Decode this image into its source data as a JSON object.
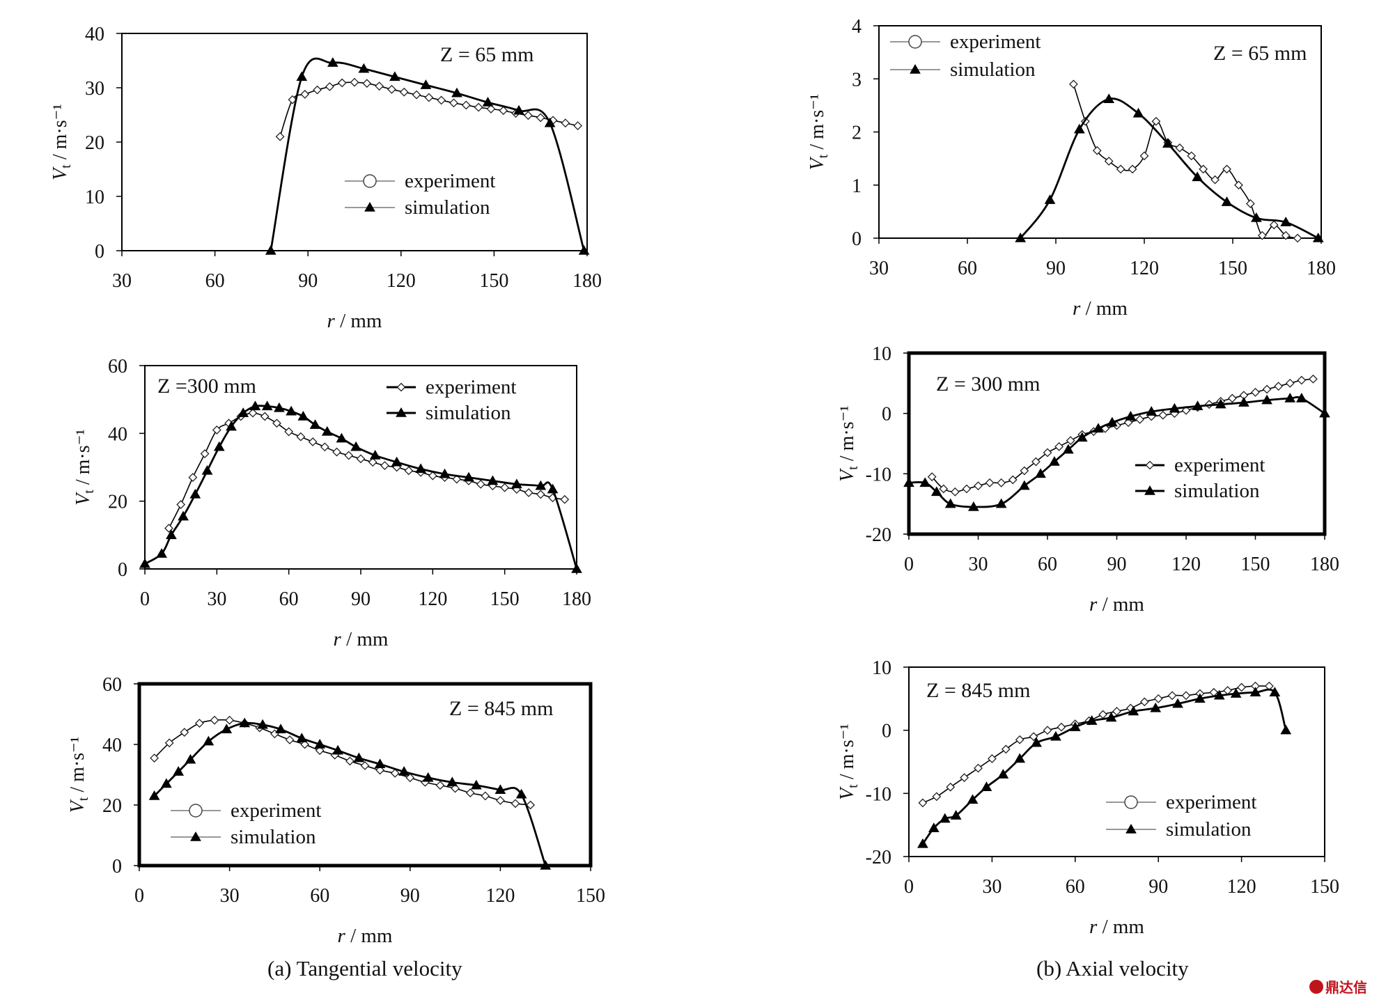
{
  "figure": {
    "caption_a": "(a) Tangential velocity",
    "caption_b": "(b) Axial velocity",
    "watermark": "鼎达信"
  },
  "chart_data": [
    {
      "id": "a1",
      "type": "line",
      "title": "Z = 65 mm",
      "xlabel": "r / mm",
      "ylabel": "Vt / m·s⁻¹",
      "xlim": [
        30,
        180
      ],
      "ylim": [
        0,
        40
      ],
      "xticks": [
        30,
        60,
        90,
        120,
        150,
        180
      ],
      "yticks": [
        0,
        10,
        20,
        30,
        40
      ],
      "legend": "lower-right",
      "legend_style": "open",
      "series": [
        {
          "name": "experiment",
          "marker": "diamond",
          "x": [
            81,
            85,
            89,
            93,
            97,
            101,
            105,
            109,
            113,
            117,
            121,
            125,
            129,
            133,
            137,
            141,
            145,
            149,
            153,
            157,
            161,
            165,
            169,
            173,
            177
          ],
          "y": [
            21,
            27.8,
            28.8,
            29.6,
            30.2,
            30.9,
            31,
            30.8,
            30.3,
            29.7,
            29.2,
            28.7,
            28.2,
            27.7,
            27.2,
            26.8,
            26.4,
            26.1,
            25.8,
            25.3,
            24.9,
            24.5,
            24,
            23.5,
            23
          ]
        },
        {
          "name": "simulation",
          "marker": "triangle",
          "x": [
            78,
            88,
            98,
            108,
            118,
            128,
            138,
            148,
            158,
            168,
            179
          ],
          "y": [
            0,
            32,
            34.6,
            33.5,
            32,
            30.5,
            29,
            27.3,
            25.8,
            23.5,
            0
          ]
        }
      ]
    },
    {
      "id": "a2",
      "type": "line",
      "title": "Z =300 mm",
      "xlabel": "r / mm",
      "ylabel": "Vt / m·s⁻¹",
      "xlim": [
        0,
        180
      ],
      "ylim": [
        0,
        60
      ],
      "xticks": [
        0,
        30,
        60,
        90,
        120,
        150,
        180
      ],
      "yticks": [
        0,
        20,
        40,
        60
      ],
      "legend": "top-right",
      "legend_style": "bold",
      "series": [
        {
          "name": "experiment",
          "marker": "diamond",
          "x": [
            10,
            15,
            20,
            25,
            30,
            35,
            40,
            45,
            50,
            55,
            60,
            65,
            70,
            75,
            80,
            85,
            90,
            95,
            100,
            105,
            110,
            115,
            120,
            125,
            130,
            135,
            140,
            145,
            150,
            155,
            160,
            165,
            170,
            175
          ],
          "y": [
            12,
            19,
            27,
            34,
            41,
            43,
            45,
            46,
            45,
            43,
            40.5,
            39,
            37.5,
            36,
            34.5,
            33.5,
            32.5,
            31.5,
            30.5,
            30,
            29,
            28.5,
            27.5,
            27,
            26.5,
            26,
            25,
            24.5,
            24,
            23.5,
            22.5,
            22,
            21,
            20.5
          ]
        },
        {
          "name": "simulation",
          "marker": "triangle",
          "x": [
            0,
            7,
            11,
            16,
            21,
            26,
            31,
            36,
            41,
            46,
            51,
            56,
            61,
            66,
            71,
            76,
            82,
            88,
            96,
            105,
            115,
            125,
            135,
            145,
            155,
            165,
            170,
            180
          ],
          "y": [
            1.5,
            4.5,
            10,
            15.5,
            22,
            29,
            36,
            42,
            46,
            48,
            48,
            47.5,
            46.5,
            45,
            42.5,
            40.5,
            38.5,
            36,
            33.5,
            31.5,
            29.5,
            28,
            27,
            26,
            25,
            24.5,
            23.5,
            0
          ]
        }
      ]
    },
    {
      "id": "a3",
      "type": "line",
      "title": "Z = 845 mm",
      "xlabel": "r / mm",
      "ylabel": "Vt / m·s⁻¹",
      "xlim": [
        0,
        150
      ],
      "ylim": [
        0,
        60
      ],
      "xticks": [
        0,
        30,
        60,
        90,
        120,
        150
      ],
      "yticks": [
        0,
        20,
        40,
        60
      ],
      "legend": "bottom-left",
      "legend_style": "open",
      "series": [
        {
          "name": "experiment",
          "marker": "diamond",
          "x": [
            5,
            10,
            15,
            20,
            25,
            30,
            35,
            40,
            45,
            50,
            55,
            60,
            65,
            70,
            75,
            80,
            85,
            90,
            95,
            100,
            105,
            110,
            115,
            120,
            125,
            130
          ],
          "y": [
            35.5,
            40.5,
            44,
            47,
            48,
            48,
            47,
            45.5,
            43.5,
            41.5,
            40,
            38,
            36.5,
            34.5,
            33,
            31.5,
            30.5,
            29,
            27.5,
            26.5,
            25.5,
            24,
            23,
            21.5,
            20.5,
            20
          ]
        },
        {
          "name": "simulation",
          "marker": "triangle",
          "x": [
            5,
            9,
            13,
            17,
            23,
            29,
            35,
            41,
            47,
            54,
            60,
            66,
            73,
            80,
            88,
            96,
            104,
            112,
            120,
            127,
            135
          ],
          "y": [
            23,
            27,
            31,
            35,
            41,
            45,
            47,
            46.5,
            45,
            42,
            40,
            38,
            35.5,
            33.5,
            31,
            29,
            27.5,
            26.5,
            25,
            23.5,
            0
          ]
        }
      ]
    },
    {
      "id": "b1",
      "type": "line",
      "title": "Z = 65 mm",
      "xlabel": "r / mm",
      "ylabel": "Vt / m·s⁻¹",
      "xlim": [
        30,
        180
      ],
      "ylim": [
        0,
        4
      ],
      "xticks": [
        30,
        60,
        90,
        120,
        150,
        180
      ],
      "yticks": [
        0,
        1,
        2,
        3,
        4
      ],
      "legend": "top-left",
      "legend_style": "open",
      "series": [
        {
          "name": "experiment",
          "marker": "diamond",
          "x": [
            96,
            100,
            104,
            108,
            112,
            116,
            120,
            124,
            128,
            132,
            136,
            140,
            144,
            148,
            152,
            156,
            160,
            164,
            168,
            172
          ],
          "y": [
            2.9,
            2.2,
            1.65,
            1.45,
            1.3,
            1.3,
            1.55,
            2.2,
            1.8,
            1.7,
            1.55,
            1.3,
            1.1,
            1.3,
            1.0,
            0.65,
            0.05,
            0.25,
            0.05,
            0.0
          ]
        },
        {
          "name": "simulation",
          "marker": "triangle",
          "x": [
            78,
            88,
            98,
            108,
            118,
            128,
            138,
            148,
            158,
            168,
            179
          ],
          "y": [
            0,
            0.72,
            2.05,
            2.62,
            2.35,
            1.78,
            1.15,
            0.68,
            0.38,
            0.3,
            0
          ]
        }
      ]
    },
    {
      "id": "b2",
      "type": "line",
      "title": "Z = 300 mm",
      "xlabel": "r / mm",
      "ylabel": "Vt / m·s⁻¹",
      "xlim": [
        0,
        180
      ],
      "ylim": [
        -20,
        10
      ],
      "xticks": [
        0,
        30,
        60,
        90,
        120,
        150,
        180
      ],
      "yticks": [
        -20,
        -10,
        0,
        10
      ],
      "legend": "right",
      "legend_style": "bold",
      "series": [
        {
          "name": "experiment",
          "marker": "diamond",
          "x": [
            10,
            15,
            20,
            25,
            30,
            35,
            40,
            45,
            50,
            55,
            60,
            65,
            70,
            75,
            80,
            85,
            90,
            95,
            100,
            105,
            110,
            115,
            120,
            125,
            130,
            135,
            140,
            145,
            150,
            155,
            160,
            165,
            170,
            175
          ],
          "y": [
            -10.5,
            -12.5,
            -13,
            -12.5,
            -12,
            -11.5,
            -11.5,
            -11,
            -9.5,
            -8,
            -6.5,
            -5.5,
            -4.5,
            -3.5,
            -3,
            -2.5,
            -2,
            -1.5,
            -1,
            -0.5,
            -0.3,
            0,
            0.5,
            1,
            1.5,
            2,
            2.5,
            3,
            3.5,
            4,
            4.5,
            5,
            5.5,
            5.7
          ]
        },
        {
          "name": "simulation",
          "marker": "triangle",
          "x": [
            0,
            7,
            12,
            18,
            28,
            40,
            50,
            57,
            63,
            69,
            75,
            82,
            88,
            96,
            105,
            115,
            125,
            135,
            145,
            155,
            165,
            170,
            180
          ],
          "y": [
            -11.5,
            -11.5,
            -13,
            -15,
            -15.5,
            -15,
            -12,
            -10,
            -8,
            -6,
            -4,
            -2.5,
            -1.5,
            -0.5,
            0.3,
            0.8,
            1.2,
            1.5,
            1.8,
            2.2,
            2.5,
            2.5,
            0
          ]
        }
      ]
    },
    {
      "id": "b3",
      "type": "line",
      "title": "Z = 845 mm",
      "xlabel": "r / mm",
      "ylabel": "Vt / m·s⁻¹",
      "xlim": [
        0,
        150
      ],
      "ylim": [
        -20,
        10
      ],
      "xticks": [
        0,
        30,
        60,
        90,
        120,
        150
      ],
      "yticks": [
        -20,
        -10,
        0,
        10
      ],
      "legend": "lower-right",
      "legend_style": "open",
      "series": [
        {
          "name": "experiment",
          "marker": "diamond",
          "x": [
            5,
            10,
            15,
            20,
            25,
            30,
            35,
            40,
            45,
            50,
            55,
            60,
            65,
            70,
            75,
            80,
            85,
            90,
            95,
            100,
            105,
            110,
            115,
            120,
            125,
            130
          ],
          "y": [
            -11.5,
            -10.5,
            -9,
            -7.5,
            -6,
            -4.5,
            -3,
            -1.5,
            -1,
            0,
            0.5,
            1,
            1.5,
            2.5,
            3,
            3.5,
            4.5,
            5,
            5.5,
            5.5,
            5.8,
            6,
            6.3,
            6.8,
            7,
            7
          ]
        },
        {
          "name": "simulation",
          "marker": "triangle",
          "x": [
            5,
            9,
            13,
            17,
            23,
            28,
            34,
            40,
            46,
            53,
            60,
            66,
            73,
            81,
            89,
            97,
            105,
            112,
            118,
            125,
            132,
            136
          ],
          "y": [
            -18,
            -15.5,
            -14,
            -13.5,
            -11,
            -9,
            -7,
            -4.5,
            -2,
            -1,
            0.5,
            1.5,
            2,
            3,
            3.5,
            4.2,
            5,
            5.5,
            5.8,
            6,
            6,
            0
          ]
        }
      ]
    }
  ]
}
